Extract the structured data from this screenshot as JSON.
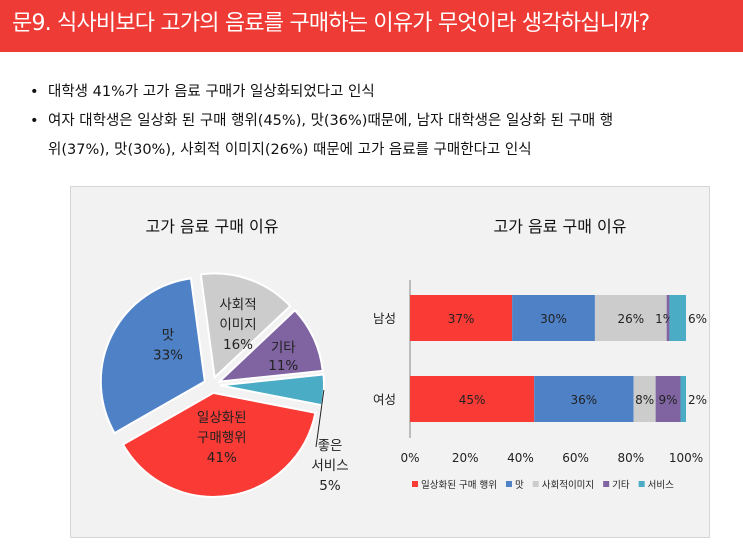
{
  "header": {
    "title": "문9. 식사비보다 고가의 음료를 구매하는 이유가 무엇이라 생각하십니까?"
  },
  "bullets": [
    {
      "lines": [
        "대학생 41%가 고가 음료 구매가 일상화되었다고 인식"
      ]
    },
    {
      "lines": [
        "여자 대학생은 일상화 된 구매 행위(45%), 맛(36%)때문에, 남자 대학생은 일상화 된 구매 행",
        "위(37%), 맛(30%), 사회적 이미지(26%) 때문에 고가 음료를 구매한다고 인식"
      ]
    }
  ],
  "chart_data": [
    {
      "type": "pie",
      "title": "고가 음료 구매 이유",
      "labels": [
        "일상화된 구매행위",
        "맛",
        "사회적 이미지",
        "기타",
        "좋은 서비스"
      ],
      "values": [
        41,
        33,
        16,
        11,
        5
      ],
      "colors": [
        "#f93a35",
        "#4f81c7",
        "#cccccc",
        "#8064a2",
        "#4bacc6"
      ],
      "exploded": true
    },
    {
      "type": "bar",
      "orientation": "horizontal",
      "stacked": true,
      "percent": true,
      "title": "고가 음료 구매 이유",
      "categories": [
        "남성",
        "여성"
      ],
      "xticks": [
        "0%",
        "20%",
        "40%",
        "60%",
        "80%",
        "100%"
      ],
      "xlim": [
        0,
        100
      ],
      "legend_position": "bottom",
      "series": [
        {
          "name": "일상화된 구매 행위",
          "color": "#f93a35",
          "values": [
            37,
            45
          ]
        },
        {
          "name": "맛",
          "color": "#4f81c7",
          "values": [
            30,
            36
          ]
        },
        {
          "name": "사회적이미지",
          "color": "#cccccc",
          "values": [
            26,
            8
          ]
        },
        {
          "name": "기타",
          "color": "#8064a2",
          "values": [
            1,
            9
          ]
        },
        {
          "name": "서비스",
          "color": "#4bacc6",
          "values": [
            6,
            2
          ]
        }
      ]
    }
  ]
}
